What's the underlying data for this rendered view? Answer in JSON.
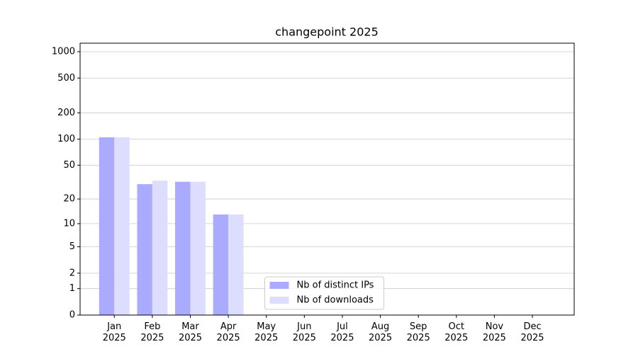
{
  "chart_data": {
    "type": "bar",
    "title": "changepoint 2025",
    "categories": [
      "Jan\n2025",
      "Feb\n2025",
      "Mar\n2025",
      "Apr\n2025",
      "May\n2025",
      "Jun\n2025",
      "Jul\n2025",
      "Aug\n2025",
      "Sep\n2025",
      "Oct\n2025",
      "Nov\n2025",
      "Dec\n2025"
    ],
    "series": [
      {
        "name": "Nb of distinct IPs",
        "color": "#aaaaff",
        "values": [
          105,
          30,
          32,
          13,
          null,
          null,
          null,
          null,
          null,
          null,
          null,
          null
        ]
      },
      {
        "name": "Nb of downloads",
        "color": "#ddddff",
        "values": [
          105,
          33,
          32,
          13,
          null,
          null,
          null,
          null,
          null,
          null,
          null,
          null
        ]
      }
    ],
    "yscale": "symlog",
    "ylim": [
      0,
      1250
    ],
    "yticks": [
      0,
      1,
      2,
      5,
      10,
      20,
      50,
      100,
      200,
      500,
      1000
    ],
    "grid": true,
    "legend": "lower center"
  }
}
